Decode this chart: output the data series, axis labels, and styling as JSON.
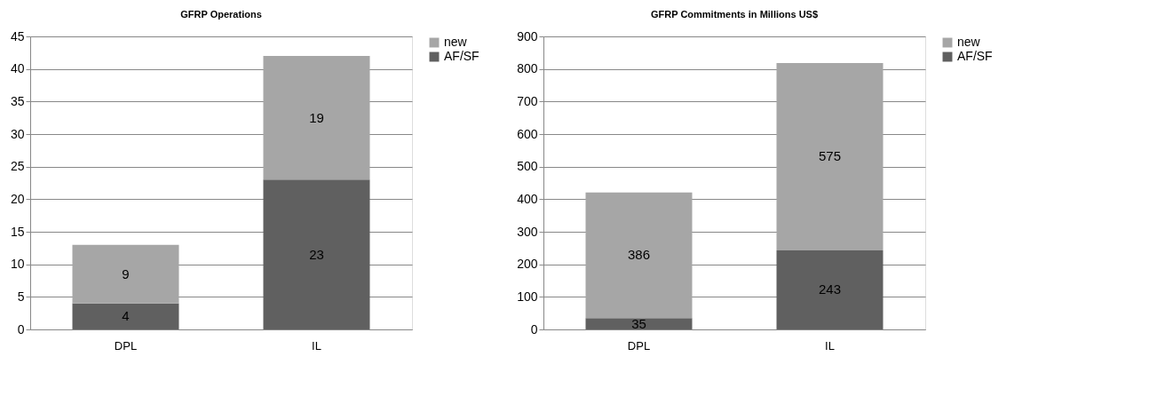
{
  "chart_data": [
    {
      "type": "bar",
      "title": "GFRP Operations",
      "categories": [
        "DPL",
        "IL"
      ],
      "stacked": true,
      "data_labels": true,
      "grid": "y",
      "legend": "right",
      "ylim": [
        0,
        45
      ],
      "yticks": [
        0,
        5,
        10,
        15,
        20,
        25,
        30,
        35,
        40,
        45
      ],
      "series": [
        {
          "name": "AF/SF",
          "color": "#606060",
          "values": [
            4,
            23
          ]
        },
        {
          "name": "new",
          "color": "#a6a6a6",
          "values": [
            9,
            19
          ]
        }
      ]
    },
    {
      "type": "bar",
      "title": "GFRP Commitments in Millions US$",
      "categories": [
        "DPL",
        "IL"
      ],
      "stacked": true,
      "data_labels": true,
      "grid": "y",
      "legend": "right",
      "ylim": [
        0,
        900
      ],
      "yticks": [
        0,
        100,
        200,
        300,
        400,
        500,
        600,
        700,
        800,
        900
      ],
      "series": [
        {
          "name": "AF/SF",
          "color": "#606060",
          "values": [
            35,
            243
          ]
        },
        {
          "name": "new",
          "color": "#a6a6a6",
          "values": [
            386,
            575
          ]
        }
      ]
    }
  ]
}
